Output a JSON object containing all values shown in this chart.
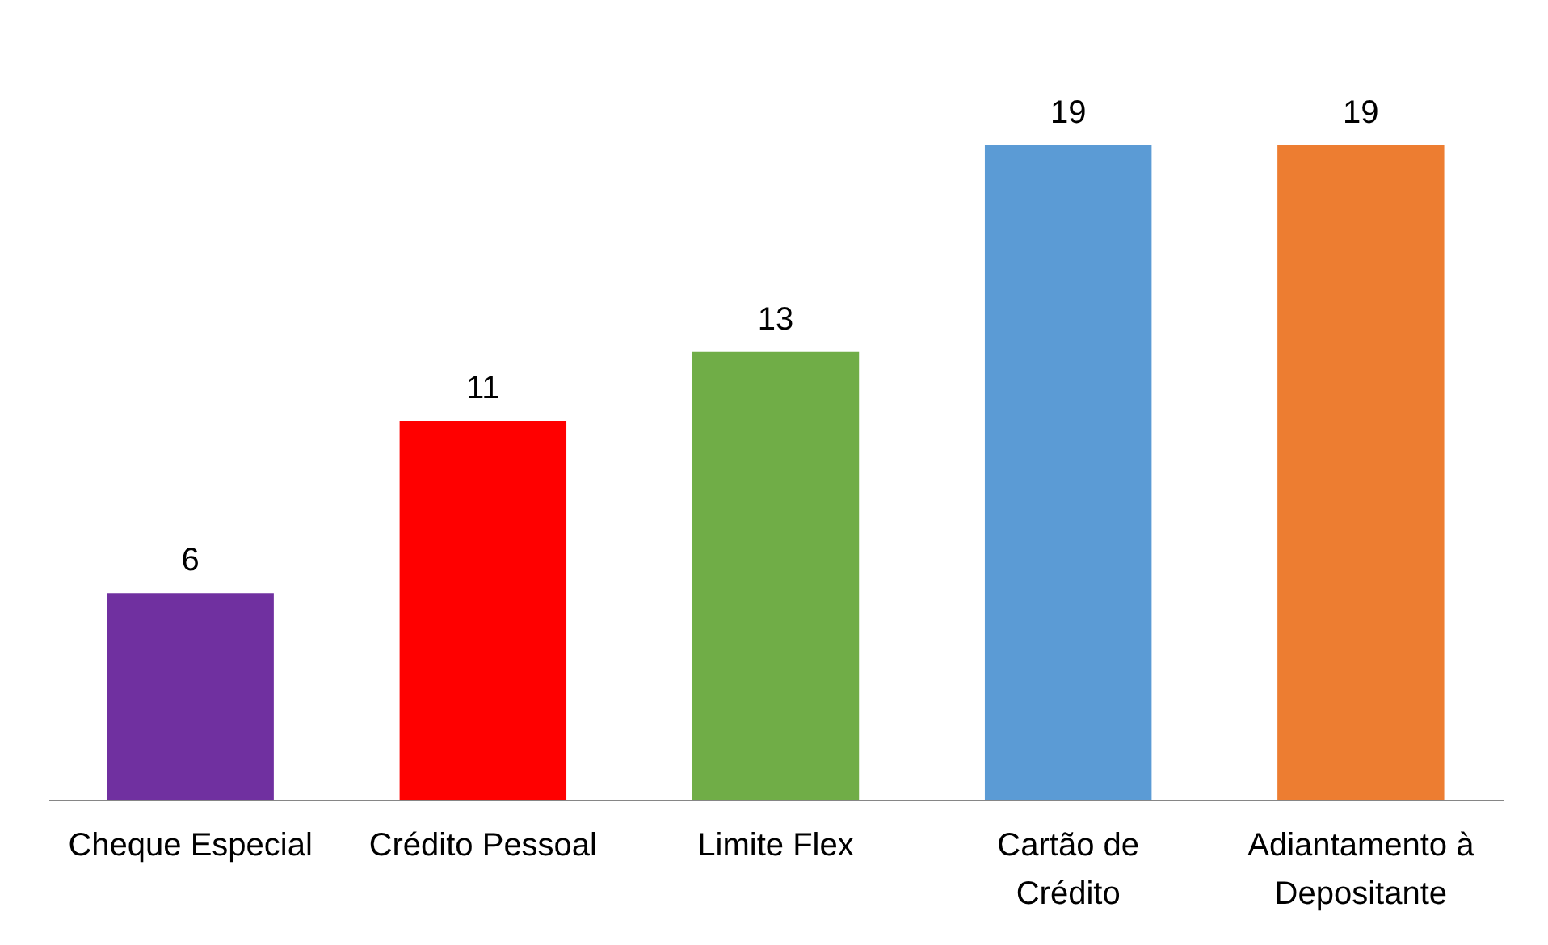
{
  "chart_data": {
    "type": "bar",
    "categories": [
      "Cheque Especial",
      "Crédito Pessoal",
      "Limite Flex",
      "Cartão de Crédito",
      "Adiantamento à Depositante"
    ],
    "values": [
      6,
      11,
      13,
      19,
      19
    ],
    "colors": [
      "#7030a0",
      "#ff0000",
      "#70ad47",
      "#5b9bd5",
      "#ed7d31"
    ],
    "data_labels": true,
    "grid": false
  }
}
